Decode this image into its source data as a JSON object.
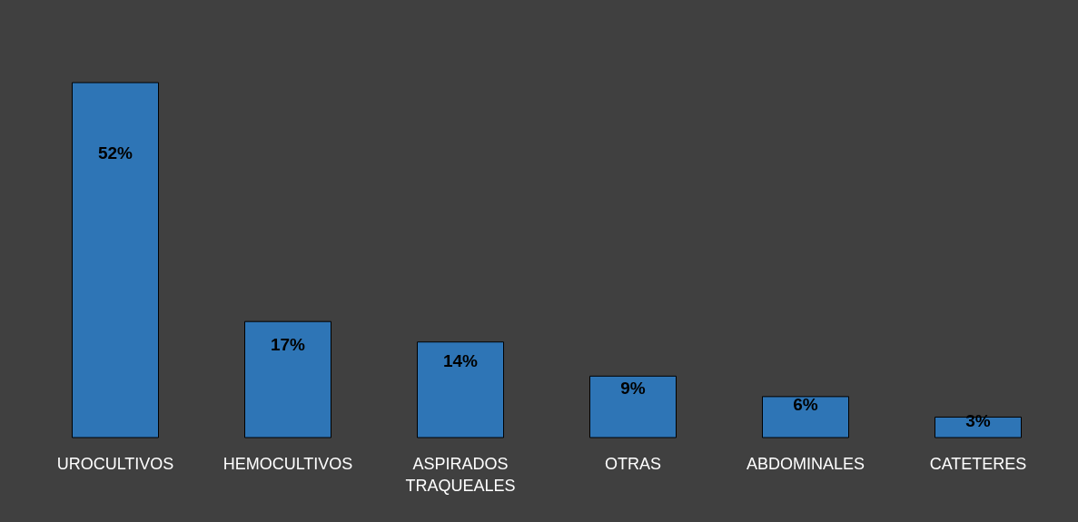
{
  "chart_data": {
    "type": "bar",
    "categories": [
      "UROCULTIVOS",
      "HEMOCULTIVOS",
      "ASPIRADOS TRAQUEALES",
      "OTRAS",
      "ABDOMINALES",
      "CATETERES"
    ],
    "values": [
      52,
      17,
      14,
      9,
      6,
      3
    ],
    "value_labels": [
      "52%",
      "17%",
      "14%",
      "9%",
      "6%",
      "3%"
    ],
    "color": "#2e75b6"
  }
}
